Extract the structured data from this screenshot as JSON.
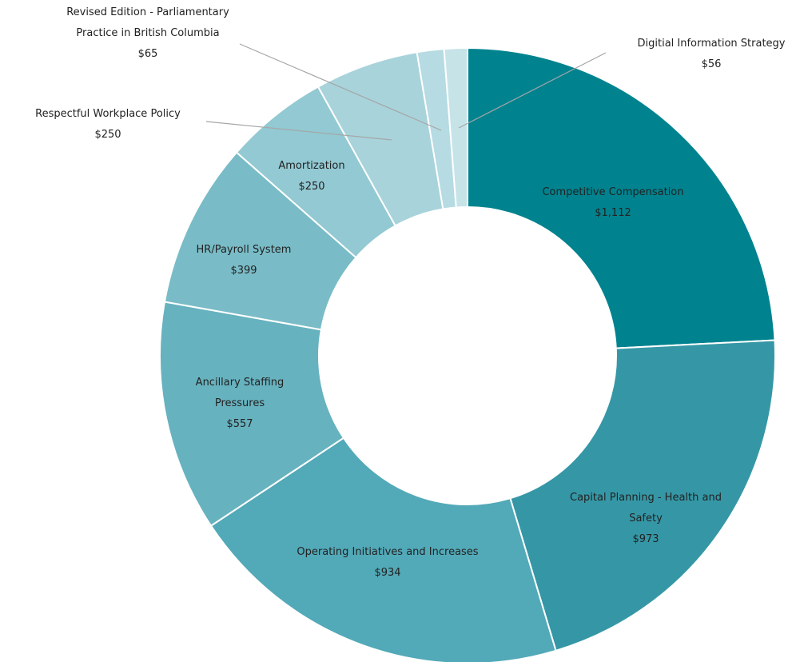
{
  "chart_data": {
    "type": "donut",
    "categories": [
      "Competitive Compensation",
      "Capital Planning - Health and Safety",
      "Operating Initiatives and Increases",
      "Ancillary Staffing Pressures",
      "HR/Payroll System",
      "Amortization",
      "Respectful Workplace Policy",
      "Revised Edition - Parliamentary Practice in British Columbia",
      "Digitial Information Strategy"
    ],
    "values": [
      1112,
      973,
      934,
      557,
      399,
      250,
      250,
      65,
      56
    ],
    "value_labels": [
      "$1,112",
      "$973",
      "$934",
      "$557",
      "$399",
      "$250",
      "$250",
      "$65",
      "$56"
    ],
    "colors": [
      "#00838f",
      "#3597a6",
      "#52a9b8",
      "#67b2bf",
      "#79bcc7",
      "#92c9d2",
      "#a8d3db",
      "#b6dbe2",
      "#c6e3e8"
    ]
  }
}
